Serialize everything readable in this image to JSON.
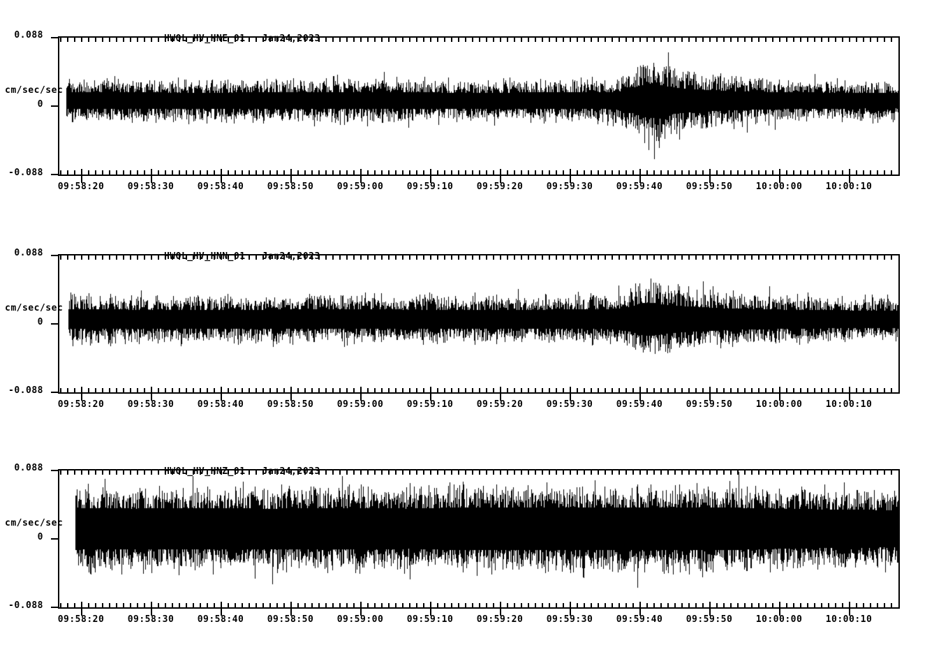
{
  "page": {
    "background": "#ffffff",
    "foreground": "#000000"
  },
  "chart_data": {
    "type": "line",
    "subtype": "seismogram-waveform",
    "grid": false,
    "legend": false,
    "axis_style": {
      "minor_tick_seconds": 1,
      "major_tick_seconds": 10,
      "tick_color": "#000000"
    },
    "xtick_labels": [
      "09:58:20",
      "09:58:30",
      "09:58:40",
      "09:58:50",
      "09:59:00",
      "09:59:10",
      "09:59:20",
      "09:59:30",
      "09:59:40",
      "09:59:50",
      "10:00:00",
      "10:00:10"
    ],
    "panels": [
      {
        "station_channel": "HWOL_HV_HNE_01",
        "date": "Jan24,2023",
        "ylabel": "cm/sec/sec",
        "ytick_labels": [
          "0.088",
          "0",
          "-0.088"
        ],
        "ylim": [
          -0.088,
          0.088
        ],
        "baseline_offset": 0.007,
        "envelope_breakpoints_sec_amp": [
          [
            1.0,
            0.027
          ],
          [
            20,
            0.026
          ],
          [
            40,
            0.027
          ],
          [
            60,
            0.026
          ],
          [
            78,
            0.027
          ],
          [
            80,
            0.029
          ],
          [
            82,
            0.038
          ],
          [
            83,
            0.047
          ],
          [
            84,
            0.054
          ],
          [
            85,
            0.056
          ],
          [
            86,
            0.05
          ],
          [
            88,
            0.043
          ],
          [
            90,
            0.038
          ],
          [
            93,
            0.034
          ],
          [
            96,
            0.031
          ],
          [
            100,
            0.029
          ],
          [
            105,
            0.027
          ],
          [
            110,
            0.026
          ],
          [
            115,
            0.025
          ],
          [
            120,
            0.025
          ]
        ],
        "render": {
          "seed": 101,
          "density": 7,
          "core_fraction": 0.4,
          "start_second": 1.0
        }
      },
      {
        "station_channel": "HWOL_HV_HNN_01",
        "date": "Jan24,2023",
        "ylabel": "cm/sec/sec",
        "ytick_labels": [
          "0.088",
          "0",
          "-0.088"
        ],
        "ylim": [
          -0.088,
          0.088
        ],
        "baseline_offset": 0.006,
        "envelope_breakpoints_sec_amp": [
          [
            1.3,
            0.03
          ],
          [
            20,
            0.029
          ],
          [
            40,
            0.03
          ],
          [
            60,
            0.029
          ],
          [
            78,
            0.03
          ],
          [
            80,
            0.032
          ],
          [
            82,
            0.04
          ],
          [
            83,
            0.047
          ],
          [
            84,
            0.051
          ],
          [
            85,
            0.05
          ],
          [
            86,
            0.046
          ],
          [
            88,
            0.042
          ],
          [
            90,
            0.039
          ],
          [
            93,
            0.036
          ],
          [
            96,
            0.033
          ],
          [
            100,
            0.031
          ],
          [
            105,
            0.029
          ],
          [
            110,
            0.028
          ],
          [
            115,
            0.027
          ],
          [
            120,
            0.027
          ]
        ],
        "render": {
          "seed": 202,
          "density": 8,
          "core_fraction": 0.42,
          "start_second": 1.3
        }
      },
      {
        "station_channel": "HWOL_HV_HNZ_01",
        "date": "Jan24,2023",
        "ylabel": "cm/sec/sec",
        "ytick_labels": [
          "0.088",
          "0",
          "-0.088"
        ],
        "ylim": [
          -0.088,
          0.088
        ],
        "baseline_offset": 0.013,
        "envelope_breakpoints_sec_amp": [
          [
            2.3,
            0.052
          ],
          [
            10,
            0.05
          ],
          [
            20,
            0.051
          ],
          [
            30,
            0.05
          ],
          [
            40,
            0.051
          ],
          [
            50,
            0.05
          ],
          [
            55,
            0.052
          ],
          [
            60,
            0.053
          ],
          [
            65,
            0.052
          ],
          [
            70,
            0.053
          ],
          [
            75,
            0.053
          ],
          [
            80,
            0.053
          ],
          [
            85,
            0.052
          ],
          [
            90,
            0.052
          ],
          [
            95,
            0.053
          ],
          [
            100,
            0.051
          ],
          [
            105,
            0.049
          ],
          [
            110,
            0.048
          ],
          [
            115,
            0.047
          ],
          [
            120,
            0.046
          ]
        ],
        "render": {
          "seed": 303,
          "density": 13,
          "core_fraction": 0.52,
          "start_second": 2.3
        }
      }
    ]
  }
}
